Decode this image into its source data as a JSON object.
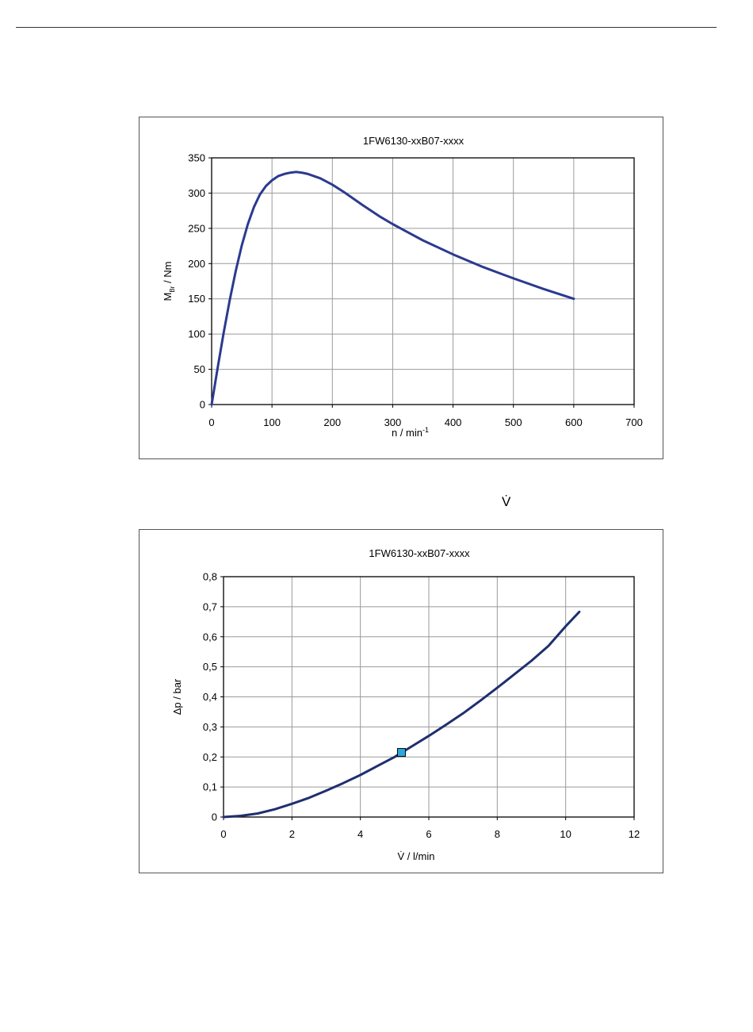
{
  "between_text": "V̇",
  "chart_data": [
    {
      "type": "line",
      "title": "1FW6130-xxB07-xxxx",
      "xlabel": "n / min",
      "xlabel_sup": "-1",
      "ylabel": "M",
      "ylabel_sub": "Br",
      "ylabel_rest": " / Nm",
      "xlim": [
        0,
        700
      ],
      "ylim": [
        0,
        350
      ],
      "xticks": [
        0,
        100,
        200,
        300,
        400,
        500,
        600,
        700
      ],
      "yticks": [
        0,
        50,
        100,
        150,
        200,
        250,
        300,
        350
      ],
      "xtick_labels": [
        "0",
        "100",
        "200",
        "300",
        "400",
        "500",
        "600",
        "700"
      ],
      "ytick_labels": [
        "0",
        "50",
        "100",
        "150",
        "200",
        "250",
        "300",
        "350"
      ],
      "grid": true,
      "line_color": "#2b3a8f",
      "series": [
        {
          "x": [
            0,
            10,
            20,
            30,
            40,
            50,
            60,
            70,
            80,
            90,
            100,
            110,
            120,
            130,
            140,
            150,
            160,
            180,
            200,
            220,
            250,
            280,
            300,
            350,
            400,
            450,
            500,
            550,
            600
          ],
          "y": [
            0,
            52,
            102,
            148,
            190,
            226,
            256,
            280,
            298,
            310,
            318,
            324,
            327,
            329,
            330,
            329,
            327,
            321,
            312,
            301,
            283,
            266,
            256,
            233,
            213,
            195,
            179,
            164,
            150
          ]
        }
      ]
    },
    {
      "type": "line",
      "title": "1FW6130-xxB07-xxxx",
      "xlabel": "V̇ / l/min",
      "ylabel": "Δp / bar",
      "xlim": [
        0,
        12
      ],
      "ylim": [
        0,
        0.8
      ],
      "xticks": [
        0,
        2,
        4,
        6,
        8,
        10,
        12
      ],
      "yticks": [
        0,
        0.1,
        0.2,
        0.3,
        0.4,
        0.5,
        0.6,
        0.7,
        0.8
      ],
      "xtick_labels": [
        "0",
        "2",
        "4",
        "6",
        "8",
        "10",
        "12"
      ],
      "ytick_labels": [
        "0",
        "0,1",
        "0,2",
        "0,3",
        "0,4",
        "0,5",
        "0,6",
        "0,7",
        "0,8"
      ],
      "grid": true,
      "line_color": "#1f2f6e",
      "marker_color": "#29a8e0",
      "series": [
        {
          "x": [
            0,
            0.5,
            1,
            1.5,
            2,
            2.5,
            3,
            3.5,
            4,
            4.5,
            5,
            5.5,
            6,
            6.5,
            7,
            7.5,
            8,
            8.5,
            9,
            9.5,
            10,
            10.4
          ],
          "y": [
            0,
            0.004,
            0.012,
            0.026,
            0.044,
            0.064,
            0.088,
            0.113,
            0.14,
            0.17,
            0.2,
            0.235,
            0.27,
            0.307,
            0.345,
            0.387,
            0.43,
            0.475,
            0.52,
            0.57,
            0.635,
            0.683
          ]
        }
      ],
      "markers": [
        {
          "x": 5.2,
          "y": 0.215
        }
      ]
    }
  ]
}
